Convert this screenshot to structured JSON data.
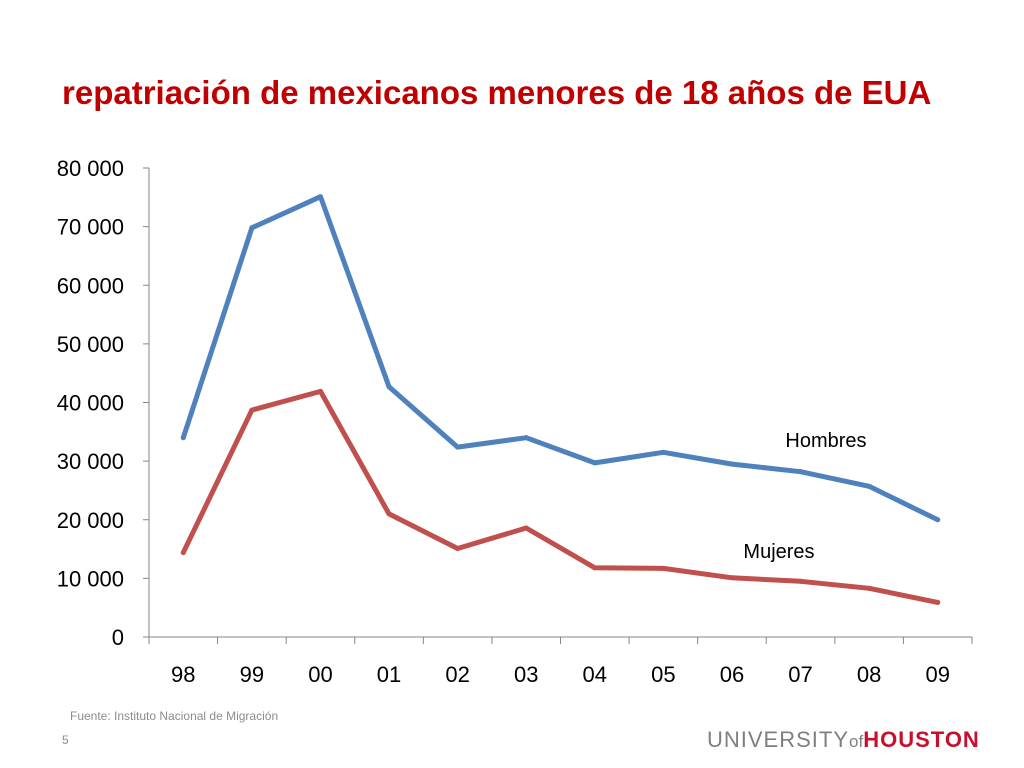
{
  "chart_data": {
    "type": "line",
    "title": "repatriación de mexicanos menores de 18 años de EUA",
    "categories": [
      "98",
      "99",
      "00",
      "01",
      "02",
      "03",
      "04",
      "05",
      "06",
      "07",
      "08",
      "09"
    ],
    "series": [
      {
        "name": "Hombres",
        "color": "#4f81bd",
        "values": [
          34000,
          69800,
          75100,
          42700,
          32400,
          34000,
          29700,
          31500,
          29500,
          28200,
          25700,
          20000
        ]
      },
      {
        "name": "Mujeres",
        "color": "#c0504d",
        "values": [
          14400,
          38700,
          41900,
          21000,
          15100,
          18600,
          11800,
          11700,
          10100,
          9500,
          8300,
          5900
        ]
      }
    ],
    "ylim": [
      0,
      80000
    ],
    "yticks": [
      0,
      10000,
      20000,
      30000,
      40000,
      50000,
      60000,
      70000,
      80000
    ],
    "ytick_labels": [
      "0",
      "10 000",
      "20 000",
      "30 000",
      "40 000",
      "50 000",
      "60 000",
      "70 000",
      "80 000"
    ],
    "grid": false,
    "legend": "inline labels"
  },
  "footer": {
    "source": "Fuente: Instituto Nacional de Migración",
    "slide_number": "5"
  },
  "logo": {
    "part1": "UNIVERSITY",
    "part2": "of",
    "part3": "HOUSTON",
    "color": "#c8102e"
  }
}
